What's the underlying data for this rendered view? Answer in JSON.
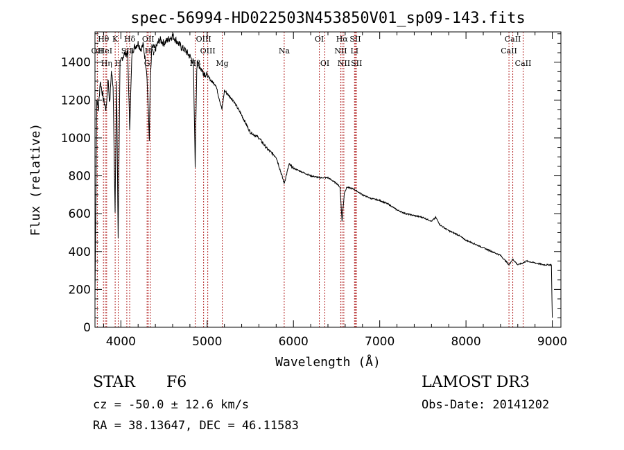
{
  "chart_data": {
    "type": "line",
    "title": "spec-56994-HD022503N453850V01_sp09-143.fits",
    "xlabel": "Wavelength (Å)",
    "ylabel": "Flux (relative)",
    "xlim": [
      3700,
      9100
    ],
    "ylim": [
      0,
      1560
    ],
    "x_ticks": [
      4000,
      5000,
      6000,
      7000,
      8000,
      9000
    ],
    "y_ticks": [
      0,
      200,
      400,
      600,
      800,
      1000,
      1200,
      1400
    ],
    "grid": false,
    "series": [
      {
        "name": "flux",
        "x": [
          3700,
          3720,
          3740,
          3760,
          3780,
          3800,
          3830,
          3850,
          3870,
          3890,
          3910,
          3933,
          3950,
          3968,
          3990,
          4010,
          4050,
          4080,
          4102,
          4130,
          4160,
          4200,
          4230,
          4260,
          4300,
          4330,
          4340,
          4360,
          4400,
          4450,
          4500,
          4550,
          4600,
          4650,
          4700,
          4750,
          4800,
          4840,
          4861,
          4880,
          4900,
          4950,
          5000,
          5050,
          5100,
          5172,
          5200,
          5300,
          5400,
          5500,
          5600,
          5700,
          5800,
          5893,
          5950,
          6000,
          6100,
          6200,
          6300,
          6400,
          6500,
          6540,
          6563,
          6590,
          6620,
          6700,
          6800,
          6900,
          7000,
          7100,
          7200,
          7300,
          7400,
          7500,
          7600,
          7650,
          7700,
          7800,
          7900,
          8000,
          8100,
          8200,
          8300,
          8400,
          8498,
          8542,
          8600,
          8662,
          8700,
          8800,
          8900,
          8990,
          9000
        ],
        "y": [
          150,
          1200,
          1150,
          1300,
          1250,
          1200,
          1150,
          1320,
          1180,
          1350,
          1280,
          600,
          1300,
          480,
          1380,
          1420,
          1450,
          1440,
          1050,
          1460,
          1480,
          1500,
          1470,
          1490,
          1350,
          1000,
          1280,
          1480,
          1470,
          1520,
          1500,
          1520,
          1540,
          1510,
          1480,
          1460,
          1430,
          1400,
          860,
          1380,
          1390,
          1350,
          1330,
          1300,
          1280,
          1150,
          1250,
          1200,
          1120,
          1030,
          1000,
          940,
          900,
          760,
          860,
          840,
          820,
          800,
          790,
          790,
          760,
          740,
          560,
          710,
          740,
          730,
          700,
          680,
          670,
          650,
          620,
          600,
          590,
          580,
          560,
          580,
          540,
          510,
          490,
          460,
          440,
          420,
          400,
          380,
          330,
          360,
          330,
          340,
          350,
          340,
          330,
          330,
          50
        ]
      }
    ],
    "lines": [
      {
        "label": "OII",
        "w": 3727,
        "row": 2
      },
      {
        "label": "Hθ",
        "w": 3798,
        "row": 1
      },
      {
        "label": "OII",
        "w": 3727,
        "row": 2
      },
      {
        "label": "HeI",
        "w": 3820,
        "row": 2
      },
      {
        "label": "Hη",
        "w": 3835,
        "row": 3
      },
      {
        "label": "K",
        "w": 3934,
        "row": 1
      },
      {
        "label": "SII",
        "w": 4069,
        "row": 2
      },
      {
        "label": "H",
        "w": 3969,
        "row": 3
      },
      {
        "label": "Hδ",
        "w": 4102,
        "row": 1
      },
      {
        "label": "OII",
        "w": 4317,
        "row": 1
      },
      {
        "label": "Hγ",
        "w": 4341,
        "row": 2
      },
      {
        "label": "G",
        "w": 4304,
        "row": 3
      },
      {
        "label": "Hβ",
        "w": 4861,
        "row": 3
      },
      {
        "label": "OIII",
        "w": 4959,
        "row": 1
      },
      {
        "label": "OIII",
        "w": 5007,
        "row": 2
      },
      {
        "label": "Mg",
        "w": 5175,
        "row": 3
      },
      {
        "label": "Na",
        "w": 5893,
        "row": 2
      },
      {
        "label": "OI",
        "w": 6300,
        "row": 1
      },
      {
        "label": "OI",
        "w": 6364,
        "row": 3
      },
      {
        "label": "Hα",
        "w": 6563,
        "row": 1
      },
      {
        "label": "NII",
        "w": 6548,
        "row": 2
      },
      {
        "label": "NII",
        "w": 6584,
        "row": 3
      },
      {
        "label": "SII",
        "w": 6717,
        "row": 1
      },
      {
        "label": "LI",
        "w": 6708,
        "row": 2
      },
      {
        "label": "SII",
        "w": 6731,
        "row": 3
      },
      {
        "label": "CaII",
        "w": 8542,
        "row": 1
      },
      {
        "label": "CaII",
        "w": 8498,
        "row": 2
      },
      {
        "label": "CaII",
        "w": 8662,
        "row": 3
      }
    ]
  },
  "info": {
    "object_type": "STAR",
    "subclass": "F6",
    "survey": "LAMOST DR3",
    "redshift": "cz = -50.0 ± 12.6 km/s",
    "obs_date": "Obs-Date: 20141202",
    "coords": "RA =  38.13647, DEC =  46.11583"
  },
  "colors": {
    "spectrum": "#000000",
    "line_marker": "#b22222",
    "axis": "#000000"
  }
}
